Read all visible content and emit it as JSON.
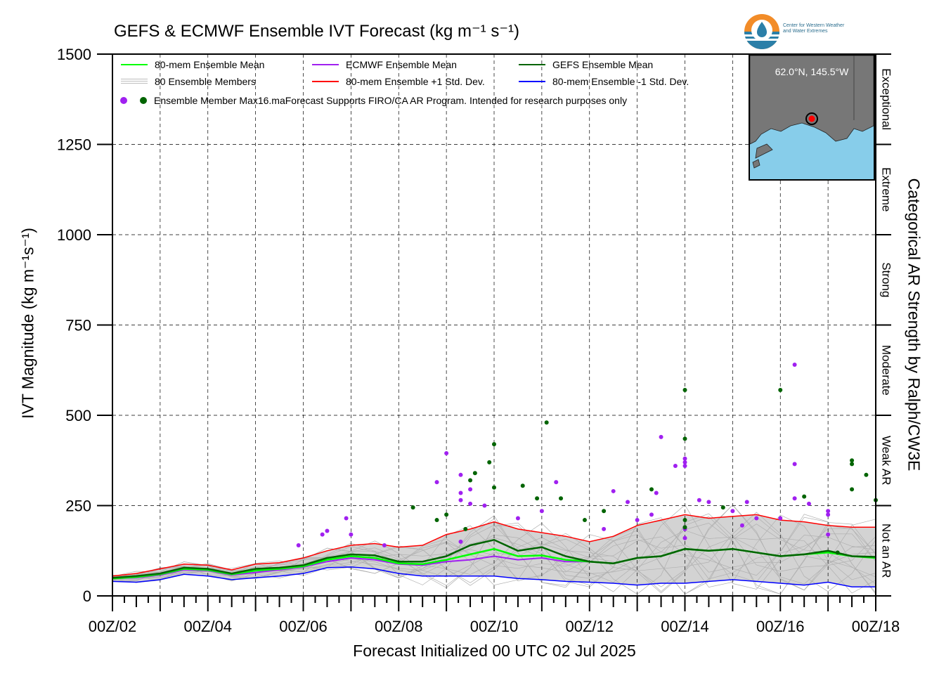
{
  "chart_data": {
    "type": "line",
    "title": "GEFS & ECMWF Ensemble IVT Forecast (kg m⁻¹ s⁻¹)",
    "xlabel": "Forecast Initialized 00 UTC 02 Jul 2025",
    "ylabel": "IVT Magnitude (kg m⁻¹s⁻¹)",
    "right_label": "Categorical AR Strength by Ralph/CW3E",
    "ylim": [
      0,
      1500
    ],
    "xlim_days": [
      2,
      18
    ],
    "x_tick_labels": [
      "00Z/02",
      "00Z/04",
      "00Z/06",
      "00Z/08",
      "00Z/10",
      "00Z/12",
      "00Z/14",
      "00Z/16",
      "00Z/18"
    ],
    "y_ticks": [
      0,
      250,
      500,
      750,
      1000,
      1250,
      1500
    ],
    "grid": true,
    "categories": [
      {
        "label": "Not an AR",
        "min": 0,
        "max": 250
      },
      {
        "label": "Weak AR",
        "min": 250,
        "max": 500
      },
      {
        "label": "Moderate",
        "min": 500,
        "max": 750
      },
      {
        "label": "Strong",
        "min": 750,
        "max": 1000
      },
      {
        "label": "Extreme",
        "min": 1000,
        "max": 1250
      },
      {
        "label": "Exceptional",
        "min": 1250,
        "max": 1500
      }
    ],
    "x": [
      2.0,
      2.5,
      3.0,
      3.5,
      4.0,
      4.5,
      5.0,
      5.5,
      6.0,
      6.5,
      7.0,
      7.5,
      8.0,
      8.5,
      9.0,
      9.5,
      10.0,
      10.5,
      11.0,
      11.5,
      12.0,
      12.5,
      13.0,
      13.5,
      14.0,
      14.5,
      15.0,
      15.5,
      16.0,
      16.5,
      17.0,
      17.5,
      18.0
    ],
    "series": [
      {
        "name": "80-mem Ensemble Mean",
        "color": "#00ff00",
        "values": [
          48,
          52,
          60,
          75,
          72,
          60,
          70,
          75,
          82,
          100,
          110,
          105,
          90,
          88,
          100,
          115,
          130,
          110,
          112,
          100,
          95,
          90,
          105,
          110,
          130,
          125,
          130,
          120,
          110,
          115,
          120,
          110,
          105
        ]
      },
      {
        "name": "ECMWF Ensemble Mean",
        "color": "#a020f0",
        "values": [
          48,
          50,
          58,
          72,
          70,
          58,
          65,
          72,
          80,
          95,
          105,
          100,
          88,
          85,
          95,
          100,
          110,
          100,
          105,
          95,
          95,
          90,
          105,
          110,
          130,
          125,
          130,
          120,
          110,
          115,
          120,
          110,
          105
        ]
      },
      {
        "name": "GEFS Ensemble Mean",
        "color": "#006400",
        "values": [
          50,
          55,
          62,
          78,
          75,
          62,
          75,
          78,
          85,
          105,
          115,
          112,
          95,
          95,
          110,
          140,
          155,
          125,
          135,
          110,
          95,
          90,
          105,
          110,
          130,
          125,
          130,
          120,
          110,
          115,
          125,
          110,
          108
        ]
      },
      {
        "name": "80-mem Ensemble +1 Std. Dev.",
        "color": "#ff0000",
        "values": [
          55,
          62,
          75,
          88,
          85,
          72,
          88,
          92,
          105,
          125,
          140,
          145,
          135,
          140,
          170,
          185,
          205,
          185,
          175,
          165,
          150,
          165,
          195,
          210,
          225,
          215,
          220,
          225,
          210,
          205,
          195,
          190,
          190
        ]
      },
      {
        "name": "80-mem Ensemble -1 Std. Dev.",
        "color": "#0000ff",
        "values": [
          40,
          38,
          45,
          60,
          55,
          45,
          50,
          55,
          62,
          78,
          80,
          75,
          62,
          55,
          55,
          55,
          55,
          48,
          45,
          40,
          38,
          35,
          30,
          35,
          35,
          40,
          45,
          40,
          35,
          30,
          38,
          25,
          25
        ]
      }
    ],
    "legend": {
      "items": [
        {
          "label": "80-mem Ensemble Mean",
          "color": "#00ff00"
        },
        {
          "label": "ECMWF Ensemble Mean",
          "color": "#a020f0"
        },
        {
          "label": "GEFS Ensemble Mean",
          "color": "#006400"
        },
        {
          "label": "80 Ensemble Members",
          "color": "#bdbdbd"
        },
        {
          "label": "80-mem Ensemble +1 Std. Dev.",
          "color": "#ff0000"
        },
        {
          "label": "80-mem Ensemble -1 Std. Dev.",
          "color": "#0000ff"
        }
      ],
      "max_label": "Ensemble Member Max",
      "note": "16.maForecast Supports FIRO/CA AR Program. Intended for research purposes only"
    },
    "member_max_points": {
      "ecmwf_color": "#a020f0",
      "gefs_color": "#006400",
      "ecmwf": [
        [
          5.9,
          140
        ],
        [
          6.4,
          170
        ],
        [
          6.5,
          180
        ],
        [
          6.9,
          215
        ],
        [
          7.0,
          170
        ],
        [
          7.7,
          140
        ],
        [
          8.8,
          315
        ],
        [
          9.0,
          395
        ],
        [
          9.3,
          150
        ],
        [
          9.3,
          265
        ],
        [
          9.3,
          285
        ],
        [
          9.3,
          335
        ],
        [
          9.5,
          295
        ],
        [
          9.5,
          255
        ],
        [
          9.8,
          250
        ],
        [
          10.5,
          215
        ],
        [
          11.0,
          235
        ],
        [
          11.3,
          315
        ],
        [
          12.3,
          185
        ],
        [
          12.5,
          290
        ],
        [
          12.8,
          260
        ],
        [
          13.0,
          210
        ],
        [
          13.3,
          225
        ],
        [
          13.4,
          285
        ],
        [
          13.5,
          440
        ],
        [
          13.8,
          360
        ],
        [
          14.0,
          160
        ],
        [
          14.0,
          185
        ],
        [
          14.0,
          360
        ],
        [
          14.0,
          370
        ],
        [
          14.0,
          380
        ],
        [
          14.3,
          265
        ],
        [
          14.5,
          260
        ],
        [
          15.0,
          235
        ],
        [
          15.2,
          195
        ],
        [
          15.3,
          260
        ],
        [
          15.5,
          215
        ],
        [
          16.0,
          215
        ],
        [
          16.3,
          365
        ],
        [
          16.3,
          640
        ],
        [
          16.3,
          270
        ],
        [
          16.6,
          255
        ],
        [
          17.0,
          170
        ],
        [
          17.0,
          225
        ],
        [
          17.0,
          235
        ]
      ],
      "gefs": [
        [
          8.3,
          245
        ],
        [
          8.8,
          210
        ],
        [
          9.0,
          225
        ],
        [
          9.4,
          185
        ],
        [
          9.5,
          320
        ],
        [
          9.6,
          340
        ],
        [
          9.9,
          370
        ],
        [
          10.0,
          300
        ],
        [
          10.0,
          420
        ],
        [
          10.6,
          305
        ],
        [
          10.9,
          270
        ],
        [
          11.1,
          480
        ],
        [
          11.4,
          270
        ],
        [
          11.9,
          210
        ],
        [
          12.3,
          235
        ],
        [
          13.3,
          295
        ],
        [
          14.0,
          190
        ],
        [
          14.0,
          210
        ],
        [
          14.0,
          435
        ],
        [
          14.0,
          570
        ],
        [
          14.8,
          245
        ],
        [
          16.0,
          570
        ],
        [
          16.5,
          275
        ],
        [
          17.2,
          120
        ],
        [
          17.5,
          375
        ],
        [
          17.5,
          365
        ],
        [
          17.5,
          295
        ],
        [
          17.8,
          335
        ],
        [
          18.0,
          265
        ]
      ]
    },
    "inset_map": {
      "label": "62.0°N, 145.5°W",
      "lat": 62.0,
      "lon": -145.5
    },
    "logo_text": [
      "Center for Western Weather",
      "and Water Extremes"
    ]
  }
}
